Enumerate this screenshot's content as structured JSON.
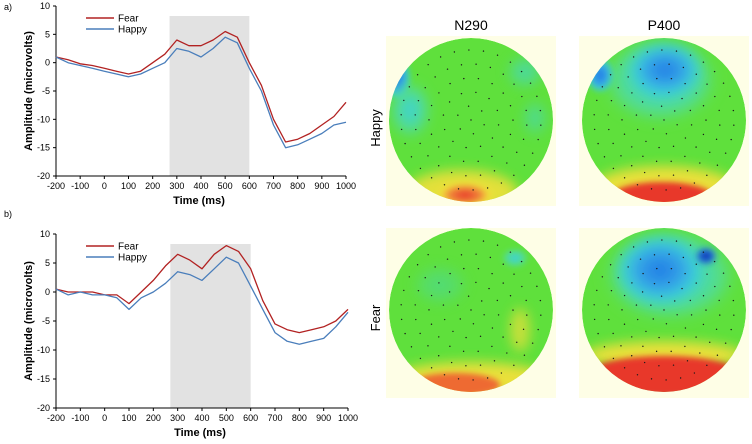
{
  "chart_data": [
    {
      "type": "line",
      "panel_label": "a)",
      "xlabel": "Time (ms)",
      "ylabel": "Amplitude (microvolts)",
      "xlim": [
        -200,
        1000
      ],
      "ylim": [
        -20,
        10
      ],
      "x_ticks": [
        "-200",
        "-100",
        "0",
        "100",
        "200",
        "300",
        "400",
        "500",
        "600",
        "700",
        "800",
        "900",
        "1000"
      ],
      "y_ticks": [
        "10",
        "5",
        "0",
        "-5",
        "-10",
        "-15",
        "-20"
      ],
      "shaded_window": [
        270,
        600
      ],
      "series": [
        {
          "name": "Fear",
          "color": "#b22222",
          "x": [
            -200,
            -150,
            -100,
            -50,
            0,
            50,
            100,
            150,
            200,
            250,
            300,
            350,
            400,
            450,
            500,
            550,
            600,
            650,
            700,
            750,
            800,
            850,
            900,
            950,
            1000
          ],
          "values": [
            1,
            0.5,
            -0.2,
            -0.5,
            -1,
            -1.5,
            -2,
            -1.5,
            0,
            1.5,
            4,
            3,
            3,
            4,
            5.5,
            4.5,
            0,
            -4,
            -10,
            -14,
            -13.5,
            -12.5,
            -11,
            -9.5,
            -7
          ]
        },
        {
          "name": "Happy",
          "color": "#4a7ebb",
          "x": [
            -200,
            -150,
            -100,
            -50,
            0,
            50,
            100,
            150,
            200,
            250,
            300,
            350,
            400,
            450,
            500,
            550,
            600,
            650,
            700,
            750,
            800,
            850,
            900,
            950,
            1000
          ],
          "values": [
            1,
            0,
            -0.5,
            -1,
            -1.5,
            -2,
            -2.5,
            -2,
            -1,
            0,
            2.5,
            2,
            1,
            2.5,
            4.5,
            3.5,
            -1,
            -5,
            -11,
            -15,
            -14.5,
            -13.5,
            -12.5,
            -11,
            -10.5
          ]
        }
      ]
    },
    {
      "type": "line",
      "panel_label": "b)",
      "xlabel": "Time (ms)",
      "ylabel": "Amplitude (microvolts)",
      "xlim": [
        -200,
        1000
      ],
      "ylim": [
        -20,
        10
      ],
      "x_ticks": [
        "-200",
        "-100",
        "0",
        "100",
        "200",
        "300",
        "400",
        "500",
        "600",
        "700",
        "800",
        "900",
        "1000"
      ],
      "y_ticks": [
        "10",
        "5",
        "0",
        "-5",
        "-10",
        "-15",
        "-20"
      ],
      "shaded_window": [
        270,
        600
      ],
      "series": [
        {
          "name": "Fear",
          "color": "#b22222",
          "x": [
            -200,
            -150,
            -100,
            -50,
            0,
            50,
            100,
            150,
            200,
            250,
            300,
            350,
            400,
            450,
            500,
            550,
            600,
            650,
            700,
            750,
            800,
            850,
            900,
            950,
            1000
          ],
          "values": [
            0.5,
            0,
            0,
            0,
            -0.5,
            -0.5,
            -2,
            0,
            2,
            4.5,
            6.5,
            5.5,
            4,
            6.5,
            8,
            7,
            4,
            -1.5,
            -5.5,
            -6.5,
            -7,
            -6.5,
            -6,
            -5,
            -3
          ]
        },
        {
          "name": "Happy",
          "color": "#4a7ebb",
          "x": [
            -200,
            -150,
            -100,
            -50,
            0,
            50,
            100,
            150,
            200,
            250,
            300,
            350,
            400,
            450,
            500,
            550,
            600,
            650,
            700,
            750,
            800,
            850,
            900,
            950,
            1000
          ],
          "values": [
            0.5,
            -0.5,
            0,
            -0.5,
            -0.5,
            -1,
            -3,
            -1,
            0,
            1.5,
            3.5,
            3,
            2,
            4,
            6,
            5,
            1,
            -3,
            -7,
            -8.5,
            -9,
            -8.5,
            -8,
            -6,
            -3.5
          ]
        }
      ]
    }
  ],
  "topomaps": {
    "column_titles": [
      "N290",
      "P400"
    ],
    "row_labels": [
      "Happy",
      "Fear"
    ],
    "maps": [
      {
        "row": "Happy",
        "component": "N290"
      },
      {
        "row": "Happy",
        "component": "P400"
      },
      {
        "row": "Fear",
        "component": "N290"
      },
      {
        "row": "Fear",
        "component": "P400"
      }
    ],
    "colors": {
      "background": "#fefee6",
      "base": "#5fe03c",
      "blue": "#1e78e6",
      "cyan": "#37cfe0",
      "red": "#e8372a",
      "yellow": "#f2e03a"
    }
  }
}
